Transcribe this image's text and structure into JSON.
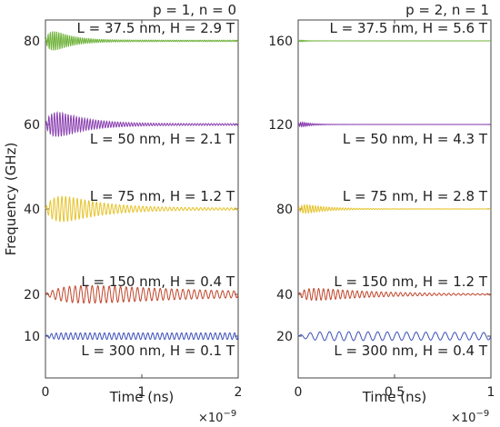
{
  "ylabel": "Frequency (GHz)",
  "chart_data": [
    {
      "type": "line",
      "title": "p = 1, n = 0",
      "xlabel": "Time (ns)",
      "x_multiplier": "×10",
      "x_exponent": "−9",
      "xlim": [
        0,
        2
      ],
      "xticks": [
        {
          "v": 0,
          "label": "0"
        },
        {
          "v": 1,
          "label": "1"
        },
        {
          "v": 2,
          "label": "2"
        }
      ],
      "yticks": [
        {
          "slot": 0,
          "label": "10"
        },
        {
          "slot": 1,
          "label": "20"
        },
        {
          "slot": 2,
          "label": "40"
        },
        {
          "slot": 3,
          "label": "60"
        },
        {
          "slot": 4,
          "label": "80"
        }
      ],
      "series": [
        {
          "offset_ghz": 10,
          "label": "L = 300 nm,   H =  0.1 T",
          "color": "#3b4fb8",
          "amp": 0.07,
          "cycles": 40,
          "decay": 0.0,
          "rise": 0.02,
          "ann_side": "below"
        },
        {
          "offset_ghz": 20,
          "label": "L = 150 nm,   H = 0.4 T",
          "color": "#c0442a",
          "amp": 0.3,
          "cycles": 34,
          "decay": 1.6,
          "rise": 0.12,
          "ann_side": "above"
        },
        {
          "offset_ghz": 40,
          "label": "L = 75 nm,   H = 1.2 T",
          "color": "#e6c229",
          "amp": 0.52,
          "cycles": 50,
          "decay": 5.2,
          "rise": 0.06,
          "ann_side": "above"
        },
        {
          "offset_ghz": 60,
          "label": "L = 50 nm,    H = 2.1 T",
          "color": "#8a3fb0",
          "amp": 0.48,
          "cycles": 70,
          "decay": 7.0,
          "rise": 0.04,
          "ann_side": "below"
        },
        {
          "offset_ghz": 80,
          "label": "L = 37.5 nm, H = 2.9 T",
          "color": "#6fb23a",
          "amp": 0.4,
          "cycles": 90,
          "decay": 11.0,
          "rise": 0.03,
          "ann_side": "above"
        }
      ]
    },
    {
      "type": "line",
      "title": "p = 2, n = 1",
      "xlabel": "Time (ns)",
      "x_multiplier": "×10",
      "x_exponent": "−9",
      "xlim": [
        0,
        1
      ],
      "xticks": [
        {
          "v": 0,
          "label": "0"
        },
        {
          "v": 0.5,
          "label": "0.5"
        },
        {
          "v": 1,
          "label": "1"
        }
      ],
      "yticks": [
        {
          "slot": 0,
          "label": "20"
        },
        {
          "slot": 1,
          "label": "40"
        },
        {
          "slot": 2,
          "label": "80"
        },
        {
          "slot": 3,
          "label": "120"
        },
        {
          "slot": 4,
          "label": "160"
        }
      ],
      "series": [
        {
          "offset_ghz": 20,
          "label": "L = 300 nm,   H = 0.4 T",
          "color": "#3b4fb8",
          "amp": 0.1,
          "cycles": 20,
          "decay": 0.3,
          "rise": 0.05,
          "ann_side": "below"
        },
        {
          "offset_ghz": 40,
          "label": "L = 150 nm,   H = 1.2 T",
          "color": "#c0442a",
          "amp": 0.18,
          "cycles": 40,
          "decay": 3.2,
          "rise": 0.04,
          "ann_side": "above"
        },
        {
          "offset_ghz": 80,
          "label": "L = 75 nm,   H = 2.8 T",
          "color": "#e6c229",
          "amp": 0.14,
          "cycles": 70,
          "decay": 9.0,
          "rise": 0.02,
          "ann_side": "above"
        },
        {
          "offset_ghz": 120,
          "label": "L = 50 nm,    H = 4.3 T",
          "color": "#8a3fb0",
          "amp": 0.08,
          "cycles": 100,
          "decay": 20.0,
          "rise": 0.01,
          "ann_side": "below"
        },
        {
          "offset_ghz": 160,
          "label": "L = 37.5 nm, H = 5.6 T",
          "color": "#6fb23a",
          "amp": 0.03,
          "cycles": 130,
          "decay": 35.0,
          "rise": 0.01,
          "ann_side": "above"
        }
      ]
    }
  ]
}
